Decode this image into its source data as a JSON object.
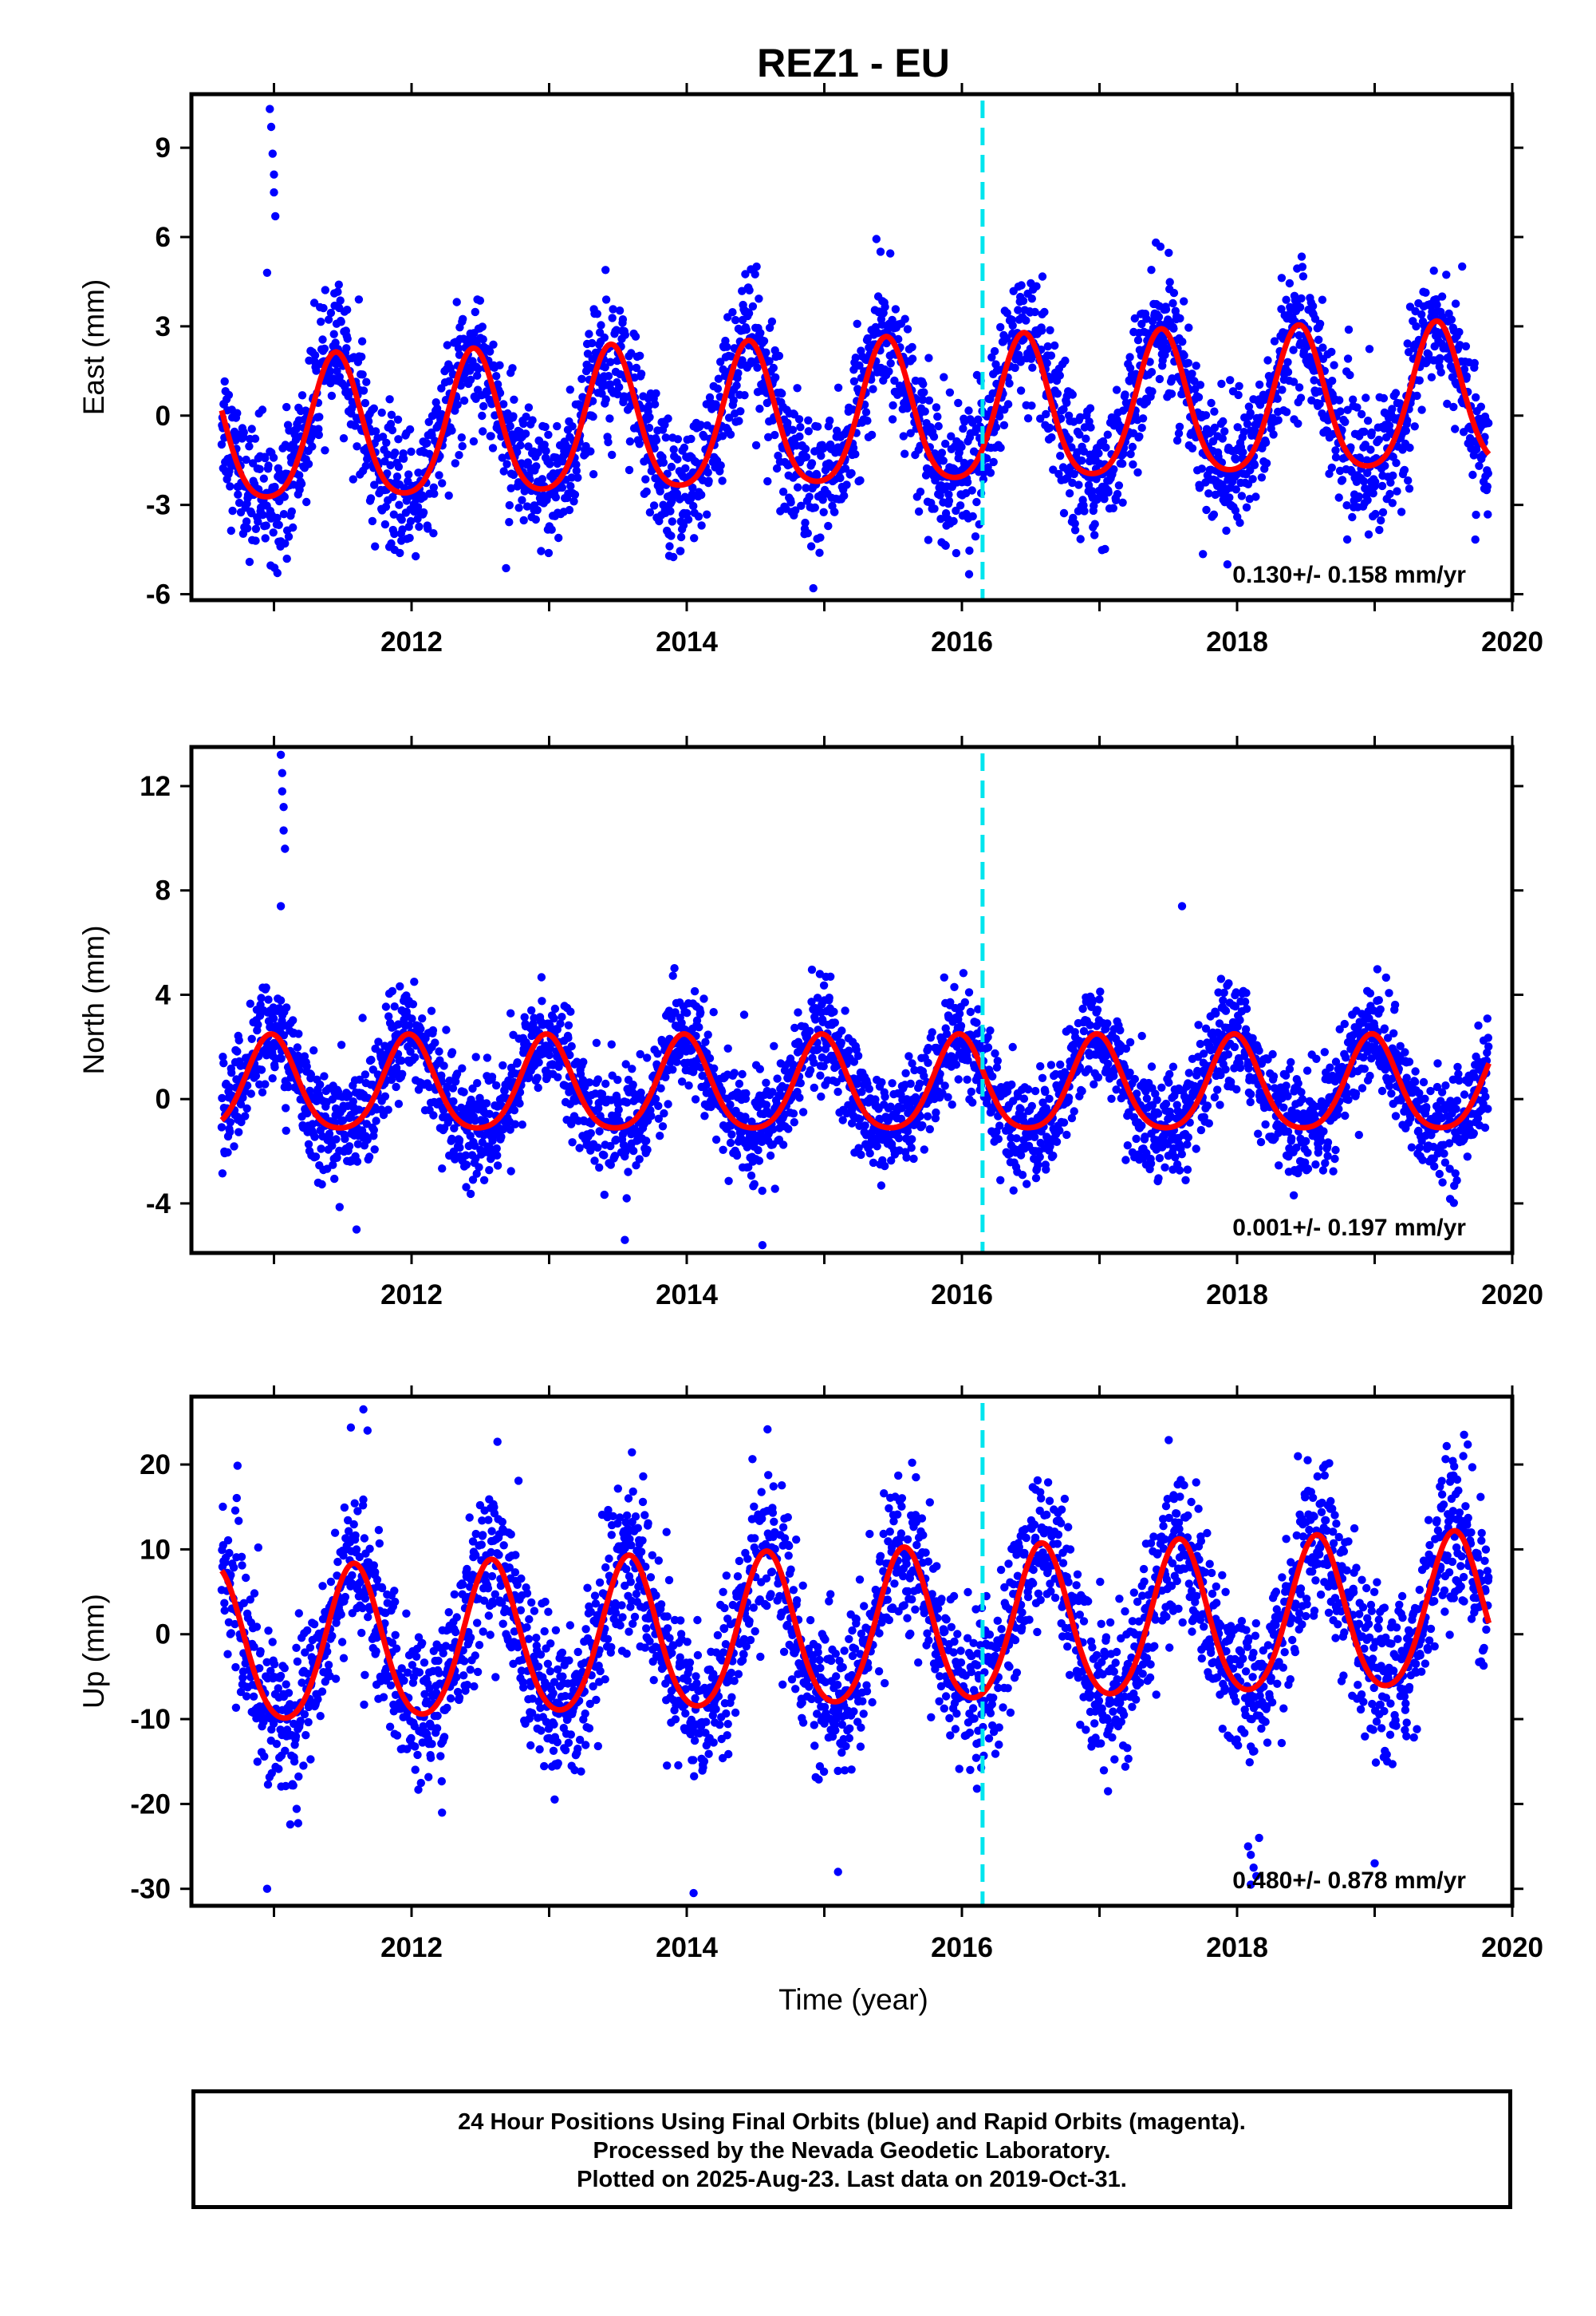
{
  "figure": {
    "title": "REZ1 - EU",
    "xlabel": "Time (year)",
    "caption": [
      "24 Hour Positions Using Final Orbits (blue) and Rapid Orbits (magenta).",
      "Processed by the Nevada Geodetic Laboratory.",
      "Plotted on 2025-Aug-23. Last data on 2019-Oct-31."
    ],
    "colors": {
      "final_orbits": "#0000ff",
      "model_fit": "#ff0000",
      "event_line": "#00e5ee",
      "frame": "#000000"
    }
  },
  "chart_data": [
    {
      "type": "scatter",
      "component": "east",
      "ylabel": "East (mm)",
      "xlim": [
        2010.4,
        2020.0
      ],
      "ylim": [
        -6.2,
        10.8
      ],
      "yticks": [
        -6,
        -3,
        0,
        3,
        6,
        9
      ],
      "xticks": [
        2012,
        2014,
        2016,
        2018,
        2020
      ],
      "rate_label": "0.130+/- 0.158 mm/yr",
      "event_line_x": 2016.15,
      "model": {
        "offset": -0.2,
        "rate": 0.13,
        "annual_amplitude": 2.4,
        "peak_phase": 0.45,
        "semiannual_amplitude": 0.4,
        "ref_year": 2015.0
      },
      "scatter_sigma": 1.1,
      "data_start": 2010.62,
      "data_end": 2019.83,
      "outliers": [
        {
          "x": 2010.97,
          "y": 10.3
        },
        {
          "x": 2010.98,
          "y": 9.7
        },
        {
          "x": 2010.99,
          "y": 8.8
        },
        {
          "x": 2011.0,
          "y": 8.1
        },
        {
          "x": 2011.0,
          "y": 7.5
        },
        {
          "x": 2011.01,
          "y": 6.7
        },
        {
          "x": 2010.95,
          "y": 4.8
        },
        {
          "x": 2014.92,
          "y": -5.8
        },
        {
          "x": 2017.93,
          "y": -5.0
        }
      ]
    },
    {
      "type": "scatter",
      "component": "north",
      "ylabel": "North (mm)",
      "xlim": [
        2010.4,
        2020.0
      ],
      "ylim": [
        -5.9,
        13.5
      ],
      "yticks": [
        -4,
        0,
        4,
        8,
        12
      ],
      "xticks": [
        2012,
        2014,
        2016,
        2018,
        2020
      ],
      "rate_label": "0.001+/- 0.197 mm/yr",
      "event_line_x": 2016.15,
      "model": {
        "offset": 0.4,
        "rate": 0.001,
        "annual_amplitude": 1.8,
        "peak_phase": 0.98,
        "semiannual_amplitude": 0.3,
        "ref_year": 2015.0
      },
      "scatter_sigma": 1.0,
      "data_start": 2010.62,
      "data_end": 2019.83,
      "outliers": [
        {
          "x": 2011.05,
          "y": 13.2
        },
        {
          "x": 2011.06,
          "y": 12.5
        },
        {
          "x": 2011.06,
          "y": 11.8
        },
        {
          "x": 2011.07,
          "y": 11.2
        },
        {
          "x": 2011.07,
          "y": 10.3
        },
        {
          "x": 2011.08,
          "y": 9.6
        },
        {
          "x": 2011.05,
          "y": 7.4
        },
        {
          "x": 2017.6,
          "y": 7.4
        },
        {
          "x": 2011.6,
          "y": -5.0
        },
        {
          "x": 2013.55,
          "y": -5.4
        },
        {
          "x": 2014.55,
          "y": -5.6
        }
      ]
    },
    {
      "type": "scatter",
      "component": "up",
      "ylabel": "Up (mm)",
      "xlim": [
        2010.4,
        2020.0
      ],
      "ylim": [
        -32,
        28
      ],
      "yticks": [
        -30,
        -20,
        -10,
        0,
        10,
        20
      ],
      "xticks": [
        2012,
        2014,
        2016,
        2018,
        2020
      ],
      "rate_label": "0.480+/- 0.878 mm/yr",
      "event_line_x": 2016.15,
      "model": {
        "offset": 0.0,
        "rate": 0.48,
        "annual_amplitude": 9.0,
        "peak_phase": 0.58,
        "semiannual_amplitude": 1.0,
        "ref_year": 2015.0
      },
      "scatter_sigma": 4.5,
      "data_start": 2010.62,
      "data_end": 2019.83,
      "outliers": [
        {
          "x": 2011.65,
          "y": 26.5
        },
        {
          "x": 2011.68,
          "y": 24.0
        },
        {
          "x": 2010.95,
          "y": -30.0
        },
        {
          "x": 2014.05,
          "y": -30.5
        },
        {
          "x": 2018.1,
          "y": -26.0
        },
        {
          "x": 2018.12,
          "y": -27.5
        },
        {
          "x": 2018.14,
          "y": -28.5
        },
        {
          "x": 2018.1,
          "y": -29.5
        },
        {
          "x": 2018.08,
          "y": -25.0
        },
        {
          "x": 2018.16,
          "y": -24.0
        },
        {
          "x": 2019.65,
          "y": 23.5
        },
        {
          "x": 2015.1,
          "y": -28.0
        },
        {
          "x": 2019.0,
          "y": -27.0
        }
      ]
    }
  ]
}
